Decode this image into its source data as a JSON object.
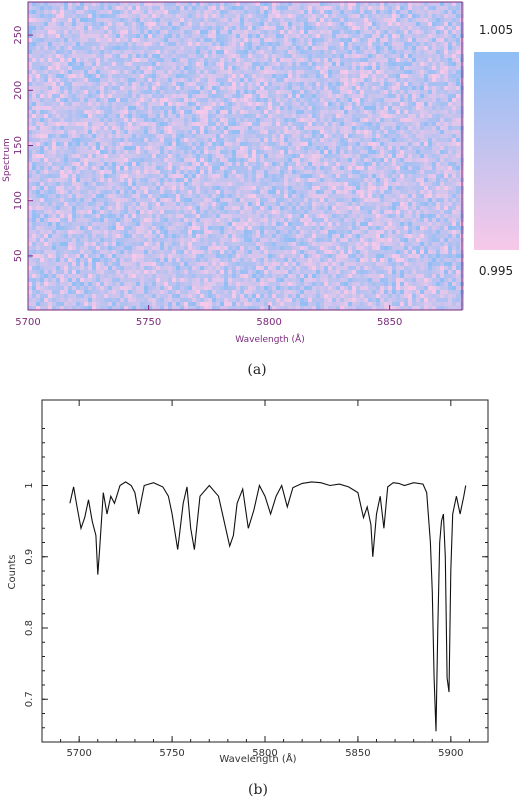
{
  "colors": {
    "low": "#f7c8e8",
    "high": "#8fbef5",
    "axis_a": "#7a2a7a",
    "axis_b": "#222222",
    "line": "#111111"
  },
  "chart_data": [
    {
      "type": "heatmap",
      "caption": "(a)",
      "xlabel": "Wavelength (Å)",
      "ylabel": "Spectrum",
      "xlim": [
        5700,
        5880
      ],
      "ylim": [
        1,
        280
      ],
      "x_ticks": [
        "5700",
        "5750",
        "5800",
        "5850"
      ],
      "y_ticks": [
        "50",
        "100",
        "150",
        "200",
        "250"
      ],
      "colorbar": {
        "max_label": "1.005",
        "min_label": "0.995",
        "min": 0.995,
        "max": 1.005
      }
    },
    {
      "type": "line",
      "caption": "(b)",
      "xlabel": "Wavelength (Å)",
      "ylabel": "Counts",
      "xlim": [
        5680,
        5920
      ],
      "ylim": [
        0.64,
        1.12
      ],
      "x_ticks": [
        "5700",
        "5750",
        "5800",
        "5850",
        "5900"
      ],
      "y_ticks": [
        "0.7",
        "0.8",
        "0.9",
        "1"
      ],
      "x": [
        5695,
        5697,
        5699,
        5701,
        5703,
        5705,
        5707,
        5709,
        5710,
        5711,
        5713,
        5715,
        5717,
        5719,
        5722,
        5725,
        5728,
        5730,
        5732,
        5735,
        5740,
        5745,
        5748,
        5750,
        5753,
        5756,
        5758,
        5760,
        5762,
        5765,
        5770,
        5775,
        5778,
        5781,
        5783,
        5785,
        5788,
        5791,
        5794,
        5797,
        5800,
        5803,
        5806,
        5809,
        5812,
        5815,
        5820,
        5825,
        5830,
        5835,
        5840,
        5845,
        5850,
        5853,
        5855,
        5857,
        5858,
        5860,
        5862,
        5864,
        5866,
        5869,
        5872,
        5875,
        5880,
        5885,
        5887,
        5889,
        5890,
        5891,
        5892,
        5893,
        5894,
        5895,
        5896,
        5897,
        5898,
        5899,
        5900,
        5901,
        5903,
        5905,
        5907,
        5908
      ],
      "y": [
        0.975,
        0.998,
        0.968,
        0.94,
        0.955,
        0.98,
        0.95,
        0.93,
        0.875,
        0.91,
        0.99,
        0.96,
        0.985,
        0.975,
        1.0,
        1.005,
        1.0,
        0.99,
        0.96,
        1.0,
        1.004,
        0.998,
        0.985,
        0.96,
        0.91,
        0.975,
        0.998,
        0.94,
        0.91,
        0.985,
        1.0,
        0.985,
        0.95,
        0.915,
        0.93,
        0.975,
        0.995,
        0.94,
        0.965,
        1.0,
        0.985,
        0.96,
        0.985,
        1.0,
        0.97,
        0.997,
        1.003,
        1.005,
        1.004,
        1.0,
        1.002,
        0.998,
        0.99,
        0.955,
        0.97,
        0.945,
        0.9,
        0.96,
        0.985,
        0.94,
        0.998,
        1.004,
        1.003,
        1.0,
        1.004,
        1.002,
        0.99,
        0.92,
        0.85,
        0.73,
        0.655,
        0.8,
        0.92,
        0.95,
        0.96,
        0.9,
        0.73,
        0.71,
        0.88,
        0.96,
        0.985,
        0.96,
        0.985,
        1.0
      ]
    }
  ]
}
